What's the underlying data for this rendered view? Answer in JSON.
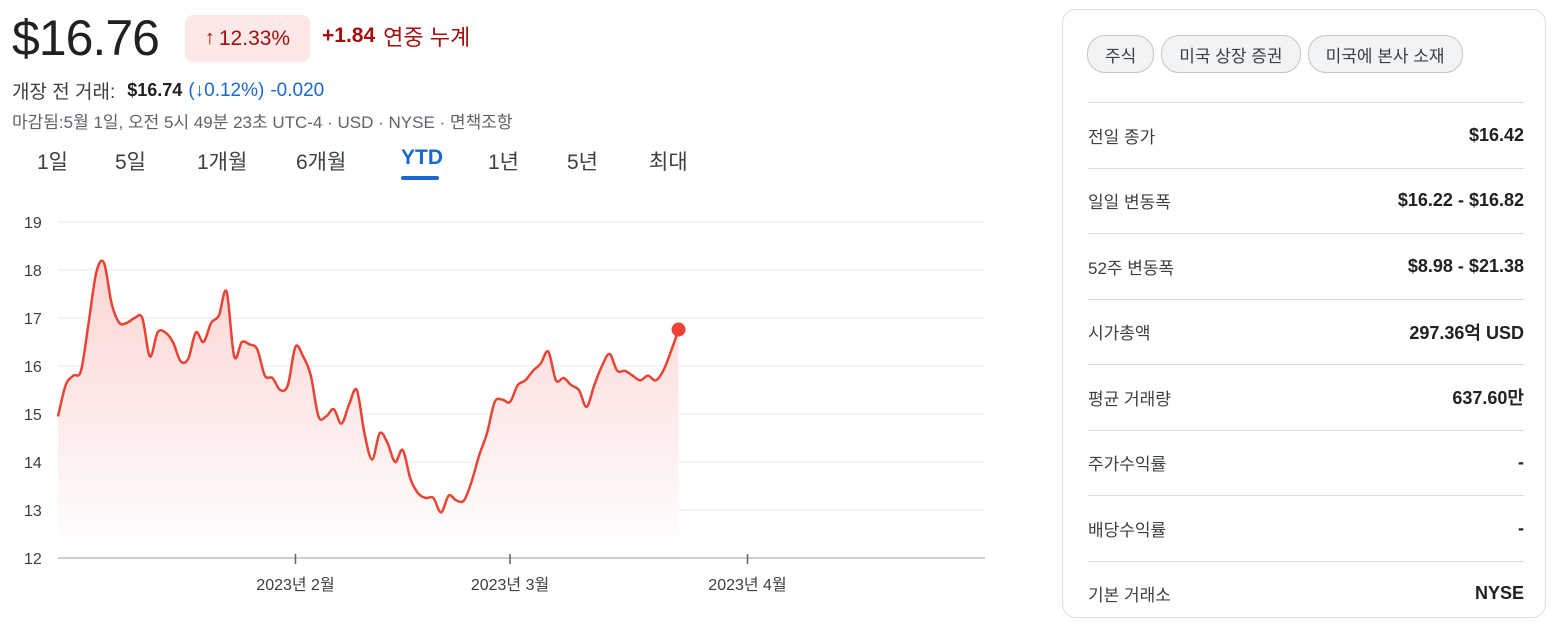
{
  "quote": {
    "price": "$16.76",
    "change_pct": "12.33%",
    "change_abs": "+1.84",
    "period_label": "연중 누계",
    "premarket_label": "개장 전 거래:",
    "premarket_price": "$16.74",
    "premarket_open_paren": "(",
    "premarket_change_pct": "0.12%)",
    "premarket_change_abs": "-0.020",
    "closed_note": "마감됨:5월 1일, 오전 5시 49분 23초 UTC-4 · USD · NYSE · 면책조항"
  },
  "tabs": [
    {
      "label": "1일"
    },
    {
      "label": "5일"
    },
    {
      "label": "1개월"
    },
    {
      "label": "6개월"
    },
    {
      "label": "YTD"
    },
    {
      "label": "1년"
    },
    {
      "label": "5년"
    },
    {
      "label": "최대"
    }
  ],
  "active_tab": "YTD",
  "colors": {
    "line": "#ea4335",
    "fill_top": "#fbd5d3",
    "down": "#a50e0e",
    "accent_blue": "#1967d2",
    "grid": "#e8eaed"
  },
  "chips": [
    {
      "label": "주식"
    },
    {
      "label": "미국 상장 증권"
    },
    {
      "label": "미국에 본사 소재"
    }
  ],
  "stats": [
    {
      "label": "전일 종가",
      "value": "$16.42"
    },
    {
      "label": "일일 변동폭",
      "value": "$16.22 - $16.82"
    },
    {
      "label": "52주 변동폭",
      "value": "$8.98 - $21.38"
    },
    {
      "label": "시가총액",
      "value": "297.36억 USD"
    },
    {
      "label": "평균 거래량",
      "value": "637.60만"
    },
    {
      "label": "주가수익률",
      "value": "-"
    },
    {
      "label": "배당수익률",
      "value": "-"
    },
    {
      "label": "기본 거래소",
      "value": "NYSE"
    }
  ],
  "chart_data": {
    "type": "area",
    "title": "",
    "xlabel": "",
    "ylabel": "",
    "ylim": [
      12,
      19
    ],
    "yticks": [
      "12",
      "13",
      "14",
      "15",
      "16",
      "17",
      "18",
      "19"
    ],
    "xticks": [
      {
        "label": "2023년 2월",
        "x": 31
      },
      {
        "label": "2023년 3월",
        "x": 59
      },
      {
        "label": "2023년 4월",
        "x": 90
      }
    ],
    "xlim": [
      0,
      121
    ],
    "grid": true,
    "series": [
      {
        "points": [
          [
            0,
            14.95
          ],
          [
            1,
            15.6
          ],
          [
            2,
            15.8
          ],
          [
            3,
            15.9
          ],
          [
            4,
            16.9
          ],
          [
            5,
            17.95
          ],
          [
            6,
            18.15
          ],
          [
            7,
            17.3
          ],
          [
            8,
            16.9
          ],
          [
            9,
            16.9
          ],
          [
            10,
            17.0
          ],
          [
            11,
            17.0
          ],
          [
            12,
            16.2
          ],
          [
            13,
            16.7
          ],
          [
            14,
            16.7
          ],
          [
            15,
            16.5
          ],
          [
            16,
            16.1
          ],
          [
            17,
            16.15
          ],
          [
            18,
            16.7
          ],
          [
            19,
            16.5
          ],
          [
            20,
            16.9
          ],
          [
            21,
            17.05
          ],
          [
            22,
            17.55
          ],
          [
            23,
            16.2
          ],
          [
            24,
            16.5
          ],
          [
            25,
            16.45
          ],
          [
            26,
            16.35
          ],
          [
            27,
            15.8
          ],
          [
            28,
            15.75
          ],
          [
            29,
            15.5
          ],
          [
            30,
            15.6
          ],
          [
            31,
            16.4
          ],
          [
            32,
            16.2
          ],
          [
            33,
            15.8
          ],
          [
            34,
            14.95
          ],
          [
            35,
            14.95
          ],
          [
            36,
            15.1
          ],
          [
            37,
            14.8
          ],
          [
            38,
            15.2
          ],
          [
            39,
            15.5
          ],
          [
            40,
            14.6
          ],
          [
            41,
            14.05
          ],
          [
            42,
            14.6
          ],
          [
            43,
            14.4
          ],
          [
            44,
            14.0
          ],
          [
            45,
            14.25
          ],
          [
            46,
            13.65
          ],
          [
            47,
            13.35
          ],
          [
            48,
            13.25
          ],
          [
            49,
            13.25
          ],
          [
            50,
            12.95
          ],
          [
            51,
            13.3
          ],
          [
            52,
            13.2
          ],
          [
            53,
            13.2
          ],
          [
            54,
            13.6
          ],
          [
            55,
            14.15
          ],
          [
            56,
            14.6
          ],
          [
            57,
            15.25
          ],
          [
            58,
            15.3
          ],
          [
            59,
            15.25
          ],
          [
            60,
            15.6
          ],
          [
            61,
            15.7
          ],
          [
            62,
            15.9
          ],
          [
            63,
            16.05
          ],
          [
            64,
            16.3
          ],
          [
            65,
            15.7
          ],
          [
            66,
            15.75
          ],
          [
            67,
            15.6
          ],
          [
            68,
            15.5
          ],
          [
            69,
            15.15
          ],
          [
            70,
            15.6
          ],
          [
            71,
            16.0
          ],
          [
            72,
            16.25
          ],
          [
            73,
            15.9
          ],
          [
            74,
            15.9
          ],
          [
            75,
            15.8
          ],
          [
            76,
            15.7
          ],
          [
            77,
            15.8
          ],
          [
            78,
            15.7
          ],
          [
            79,
            15.9
          ],
          [
            80,
            16.3
          ],
          [
            81,
            16.76
          ]
        ]
      }
    ]
  }
}
